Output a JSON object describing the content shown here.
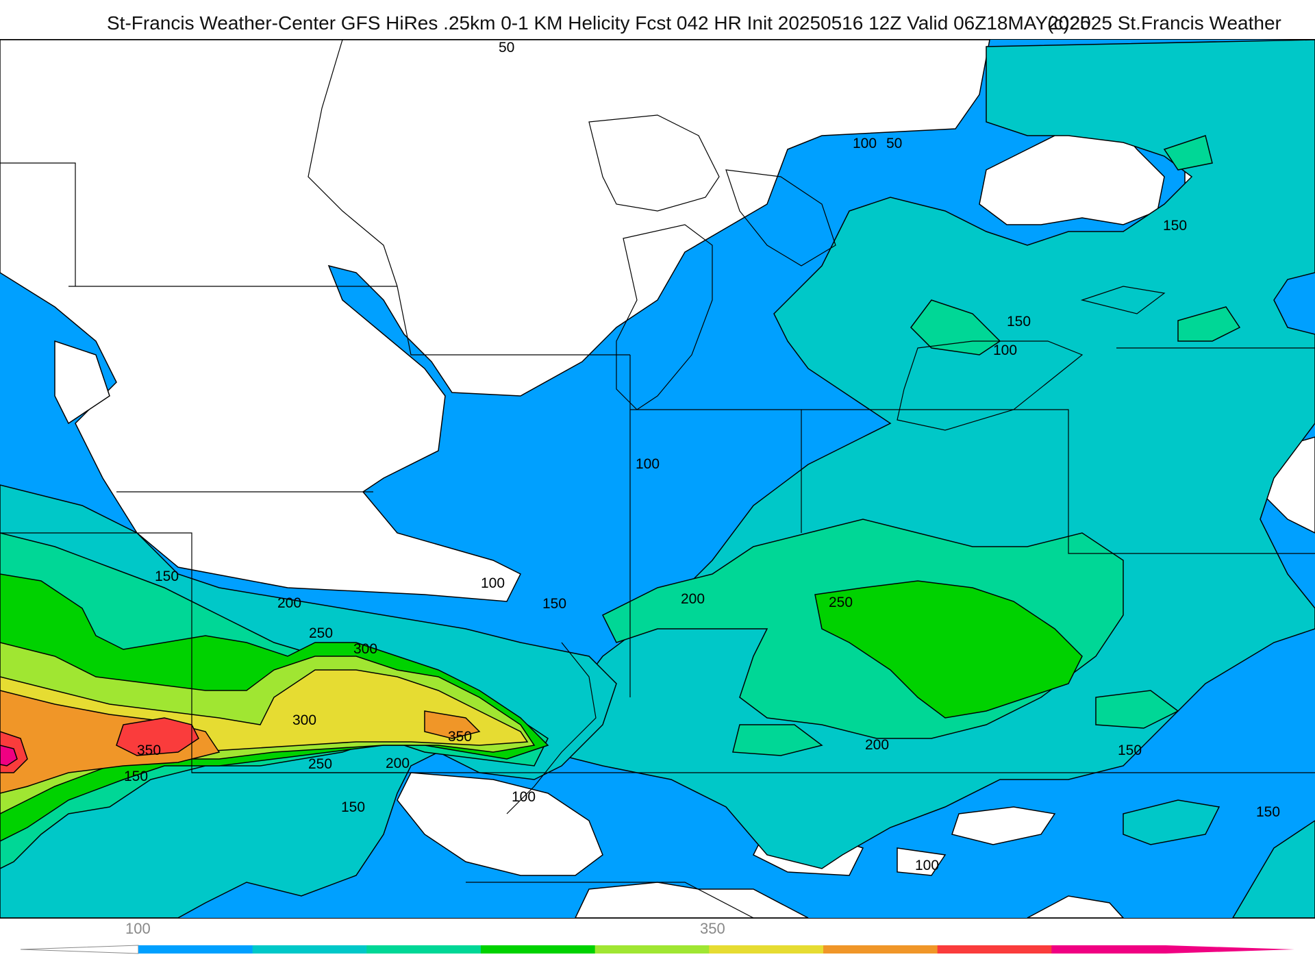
{
  "header": {
    "title": "St-Francis Weather-Center GFS HiRes .25km 0-1 KM Helicity Fcst 042 HR Init 20250516 12Z  Valid 06Z18MAY2025",
    "copyright": "(c)2025 St.Francis Weather"
  },
  "legend": {
    "tick_labels": [
      "100",
      "350"
    ],
    "bins": [
      {
        "color": "#00a0ff"
      },
      {
        "color": "#00c8c8"
      },
      {
        "color": "#00d796"
      },
      {
        "color": "#00d200"
      },
      {
        "color": "#a0e632"
      },
      {
        "color": "#e6dc32"
      },
      {
        "color": "#f09628"
      },
      {
        "color": "#fa3c3c"
      },
      {
        "color": "#f00082"
      }
    ]
  },
  "contour_labels": [
    {
      "id": "c50a",
      "text": "50"
    },
    {
      "id": "c100a",
      "text": "100"
    },
    {
      "id": "c50b",
      "text": "50"
    },
    {
      "id": "c150a",
      "text": "150"
    },
    {
      "id": "c150b",
      "text": "150"
    },
    {
      "id": "c100b",
      "text": "100"
    },
    {
      "id": "c100c",
      "text": "100"
    },
    {
      "id": "c100d",
      "text": "100"
    },
    {
      "id": "c150c",
      "text": "150"
    },
    {
      "id": "c150d",
      "text": "150"
    },
    {
      "id": "c200a",
      "text": "200"
    },
    {
      "id": "c200b",
      "text": "200"
    },
    {
      "id": "c250a",
      "text": "250"
    },
    {
      "id": "c250b",
      "text": "250"
    },
    {
      "id": "c300a",
      "text": "300"
    },
    {
      "id": "c300b",
      "text": "300"
    },
    {
      "id": "c350a",
      "text": "350"
    },
    {
      "id": "c350b",
      "text": "350"
    },
    {
      "id": "c250c",
      "text": "250"
    },
    {
      "id": "c200c",
      "text": "200"
    },
    {
      "id": "c150e",
      "text": "150"
    },
    {
      "id": "c150f",
      "text": "150"
    },
    {
      "id": "c100e",
      "text": "100"
    },
    {
      "id": "c200d",
      "text": "200"
    },
    {
      "id": "c150g",
      "text": "150"
    },
    {
      "id": "c150h",
      "text": "150"
    },
    {
      "id": "c100f",
      "text": "100"
    }
  ]
}
